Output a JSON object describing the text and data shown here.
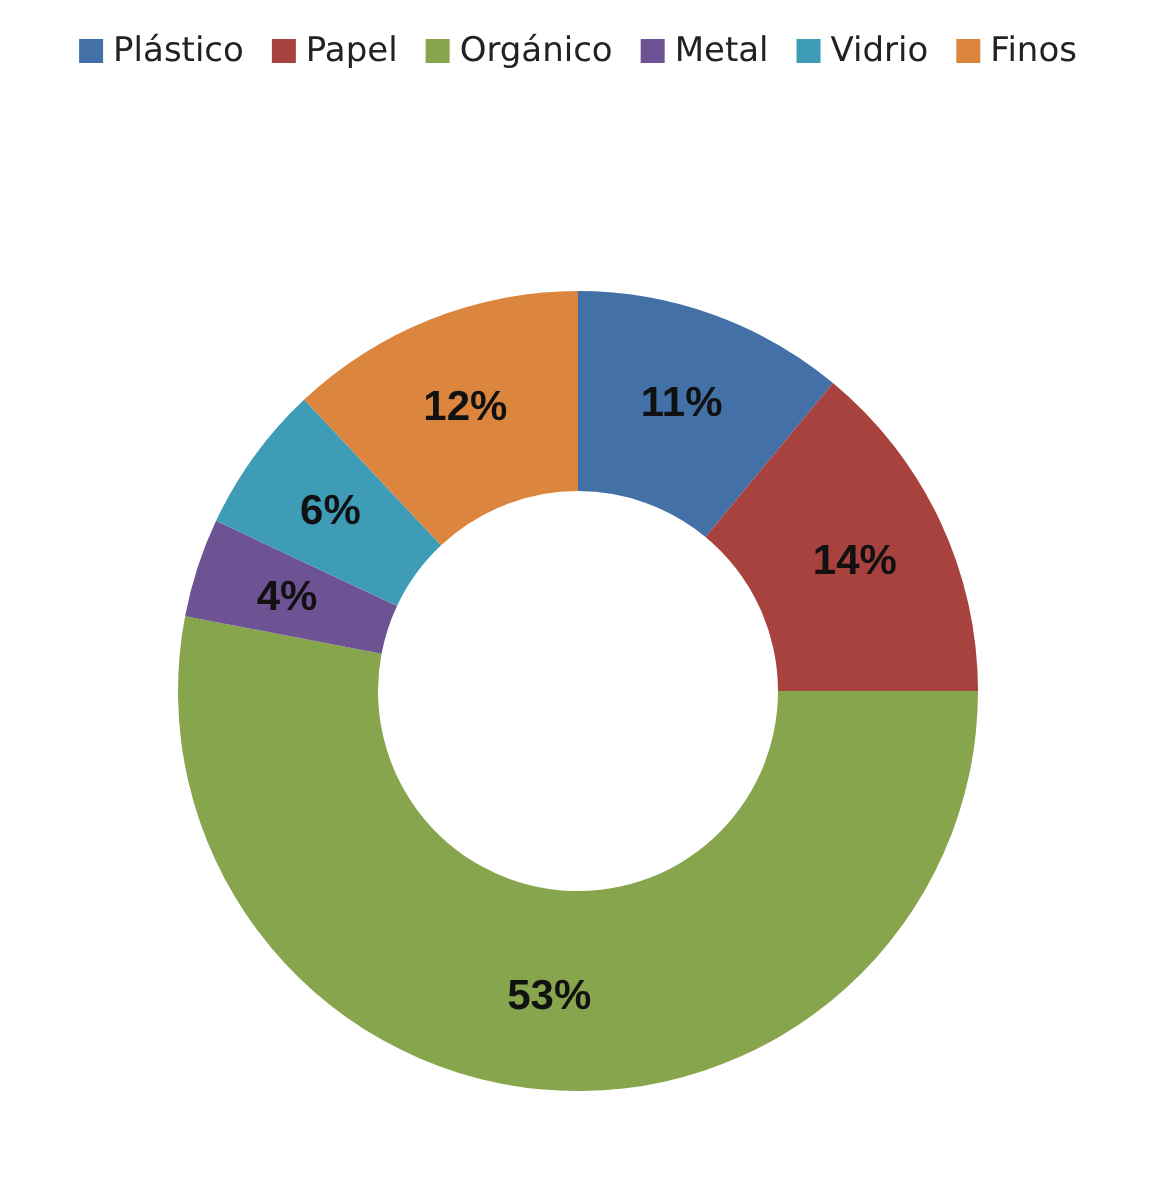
{
  "chart_data": {
    "type": "donut",
    "categories": [
      "Plástico",
      "Papel",
      "Orgánico",
      "Metal",
      "Vidrio",
      "Finos"
    ],
    "values": [
      11,
      14,
      53,
      4,
      6,
      12
    ],
    "value_labels": [
      "11%",
      "14%",
      "53%",
      "4%",
      "6%",
      "12%"
    ],
    "colors": [
      "#4470a8",
      "#a8423f",
      "#87a54c",
      "#6d5394",
      "#3e9cb6",
      "#dc853e"
    ],
    "legend": "top"
  }
}
